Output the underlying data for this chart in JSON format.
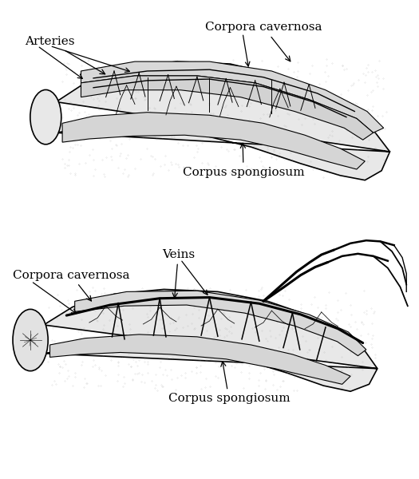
{
  "figure_width": 5.25,
  "figure_height": 6.0,
  "dpi": 100,
  "bg_color": "#ffffff",
  "top_label_arteries": "Arteries",
  "top_label_cc": "Corpora cavernosa",
  "top_label_cs": "Corpus spongiosum",
  "bot_label_veins": "Veins",
  "bot_label_cc": "Corpora cavernosa",
  "bot_label_cs": "Corpus spongiosum",
  "label_fontsize": 11,
  "lw_main": 1.2,
  "lw_thick": 2.0,
  "body_fill": "#e8e8e8",
  "inner_fill": "#d5d5d5",
  "outline_color": "#000000",
  "stipple_color": "#999999"
}
